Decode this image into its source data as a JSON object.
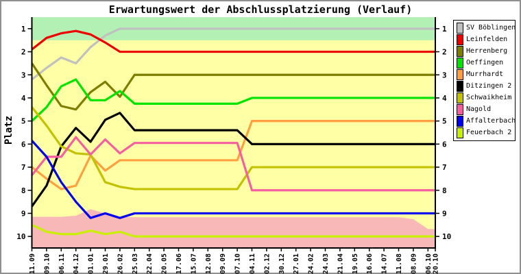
{
  "chart_data": {
    "type": "line",
    "title": "Erwartungswert der Abschlussplatzierung (Verlauf)",
    "xlabel": "",
    "ylabel": "Platz",
    "y_axis_inverted": true,
    "ylim": [
      0.5,
      10.5
    ],
    "y_ticks": [
      1,
      2,
      3,
      4,
      5,
      6,
      7,
      8,
      9,
      10
    ],
    "grid": false,
    "legend_position": "right",
    "x_labels": [
      "11.09",
      "09.10",
      "06.11",
      "04.12",
      "01.01",
      "29.01",
      "26.02",
      "25.03",
      "22.04",
      "20.05",
      "17.06",
      "15.07",
      "12.08",
      "09.09",
      "07.10",
      "04.11",
      "02.12",
      "30.12",
      "27.01",
      "24.02",
      "24.03",
      "21.04",
      "19.05",
      "16.06",
      "14.07",
      "11.08",
      "08.09",
      "06.10",
      "20.10"
    ],
    "zones": {
      "promotion": {
        "name": "zone-promotion",
        "color": "#b2f0b4",
        "from": 0.5,
        "to": 1.5
      },
      "neutral": {
        "name": "zone-neutral",
        "color": "#ffffa6"
      },
      "relegation": {
        "name": "zone-relegation",
        "color": "#f8b8b8",
        "to": 10.5,
        "boundary": [
          9.15,
          9.15,
          9.15,
          9.1,
          8.82,
          9.0,
          9.15,
          9.17,
          9.17,
          9.17,
          9.17,
          9.17,
          9.17,
          9.17,
          9.17,
          9.17,
          9.17,
          9.17,
          9.17,
          9.17,
          9.17,
          9.17,
          9.17,
          9.17,
          9.17,
          9.17,
          9.25,
          9.68,
          9.68
        ]
      }
    },
    "series": [
      {
        "name": "SV Böblingen",
        "color": "#c0c0c0",
        "values": [
          3.2,
          2.7,
          2.25,
          2.5,
          1.8,
          1.3,
          1,
          1,
          1,
          1,
          1,
          1,
          1,
          1,
          1,
          1,
          1,
          1,
          1,
          1,
          1,
          1,
          1,
          1,
          1,
          1,
          1,
          1,
          1
        ]
      },
      {
        "name": "Leinfelden",
        "color": "#ee0000",
        "values": [
          1.9,
          1.4,
          1.2,
          1.1,
          1.25,
          1.6,
          2,
          2,
          2,
          2,
          2,
          2,
          2,
          2,
          2,
          2,
          2,
          2,
          2,
          2,
          2,
          2,
          2,
          2,
          2,
          2,
          2,
          2,
          2
        ]
      },
      {
        "name": "Herrenberg",
        "color": "#7d7d00",
        "values": [
          2.5,
          3.45,
          4.35,
          4.5,
          3.75,
          3.3,
          3.95,
          3,
          3,
          3,
          3,
          3,
          3,
          3,
          3,
          3,
          3,
          3,
          3,
          3,
          3,
          3,
          3,
          3,
          3,
          3,
          3,
          3,
          3
        ]
      },
      {
        "name": "Oeffingen",
        "color": "#00e400",
        "values": [
          5,
          4.4,
          3.5,
          3.2,
          4.1,
          4.1,
          3.7,
          4.25,
          4.25,
          4.25,
          4.25,
          4.25,
          4.25,
          4.25,
          4.25,
          4,
          4,
          4,
          4,
          4,
          4,
          4,
          4,
          4,
          4,
          4,
          4,
          4,
          4
        ]
      },
      {
        "name": "Murrhardt",
        "color": "#ffa040",
        "values": [
          7,
          7.5,
          7.95,
          7.8,
          6.5,
          7.15,
          6.7,
          6.7,
          6.7,
          6.7,
          6.7,
          6.7,
          6.7,
          6.7,
          6.7,
          5,
          5,
          5,
          5,
          5,
          5,
          5,
          5,
          5,
          5,
          5,
          5,
          5,
          5
        ]
      },
      {
        "name": "Ditzingen 2",
        "color": "#000000",
        "values": [
          8.7,
          7.8,
          6.1,
          5.3,
          5.9,
          4.95,
          4.65,
          5.4,
          5.4,
          5.4,
          5.4,
          5.4,
          5.4,
          5.4,
          5.4,
          6,
          6,
          6,
          6,
          6,
          6,
          6,
          6,
          6,
          6,
          6,
          6,
          6,
          6
        ]
      },
      {
        "name": "Schwaikheim",
        "color": "#c2c200",
        "values": [
          4.4,
          5.2,
          6.1,
          6.4,
          6.45,
          7.65,
          7.85,
          7.95,
          7.95,
          7.95,
          7.95,
          7.95,
          7.95,
          7.95,
          7.95,
          7,
          7,
          7,
          7,
          7,
          7,
          7,
          7,
          7,
          7,
          7,
          7,
          7,
          7
        ]
      },
      {
        "name": "Nagold",
        "color": "#f55fa0",
        "values": [
          7.35,
          6.55,
          6.55,
          5.7,
          6.45,
          5.8,
          6.4,
          5.95,
          5.95,
          5.95,
          5.95,
          5.95,
          5.95,
          5.95,
          5.95,
          8,
          8,
          8,
          8,
          8,
          8,
          8,
          8,
          8,
          8,
          8,
          8,
          8,
          8
        ]
      },
      {
        "name": "Affalterbach",
        "color": "#0000f0",
        "values": [
          5.85,
          6.55,
          7.65,
          8.5,
          9.2,
          9.0,
          9.2,
          9,
          9,
          9,
          9,
          9,
          9,
          9,
          9,
          9,
          9,
          9,
          9,
          9,
          9,
          9,
          9,
          9,
          9,
          9,
          9,
          9,
          9
        ]
      },
      {
        "name": "Feuerbach 2",
        "color": "#c8f000",
        "values": [
          9.5,
          9.8,
          9.9,
          9.9,
          9.75,
          9.9,
          9.8,
          10,
          10,
          10,
          10,
          10,
          10,
          10,
          10,
          10,
          10,
          10,
          10,
          10,
          10,
          10,
          10,
          10,
          10,
          10,
          10,
          10,
          10
        ]
      }
    ]
  }
}
